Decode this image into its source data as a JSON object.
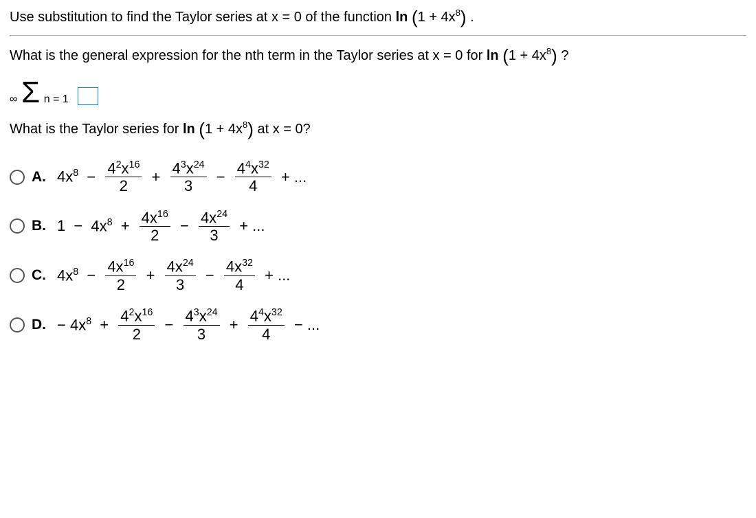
{
  "instruction_prefix": "Use substitution to find the Taylor series at x = 0 of the function ",
  "ln": "ln",
  "func_inner": "1 + 4x",
  "func_exp": "8",
  "period": ".",
  "question_prefix": "What is the general expression for the nth term in the Taylor series at x = 0 for ",
  "question_suffix": " ?",
  "sum_top": "∞",
  "sum_sigma": "Σ",
  "sum_bottom": "n = 1",
  "sub_question_prefix": "What is the Taylor series for ",
  "sub_question_suffix": " at x = 0?",
  "options": {
    "A": {
      "label": "A.",
      "first_coef": "4x",
      "first_exp": "8",
      "t2_num_a": "4",
      "t2_num_aexp": "2",
      "t2_num_b": "x",
      "t2_num_bexp": "16",
      "t2_den": "2",
      "t3_num_a": "4",
      "t3_num_aexp": "3",
      "t3_num_b": "x",
      "t3_num_bexp": "24",
      "t3_den": "3",
      "t4_num_a": "4",
      "t4_num_aexp": "4",
      "t4_num_b": "x",
      "t4_num_bexp": "32",
      "t4_den": "4",
      "ops": [
        "−",
        "+",
        "−",
        "+ ..."
      ]
    },
    "B": {
      "label": "B.",
      "lead": "1",
      "first_coef": "4x",
      "first_exp": "8",
      "t2_num": "4x",
      "t2_num_exp": "16",
      "t2_den": "2",
      "t3_num": "4x",
      "t3_num_exp": "24",
      "t3_den": "3",
      "ops": [
        "−",
        "+",
        "−",
        "+ ..."
      ]
    },
    "C": {
      "label": "C.",
      "first_coef": "4x",
      "first_exp": "8",
      "t2_num": "4x",
      "t2_num_exp": "16",
      "t2_den": "2",
      "t3_num": "4x",
      "t3_num_exp": "24",
      "t3_den": "3",
      "t4_num": "4x",
      "t4_num_exp": "32",
      "t4_den": "4",
      "ops": [
        "−",
        "+",
        "−",
        "+ ..."
      ]
    },
    "D": {
      "label": "D.",
      "first_sign": "− ",
      "first_coef": "4x",
      "first_exp": "8",
      "t2_num_a": "4",
      "t2_num_aexp": "2",
      "t2_num_b": "x",
      "t2_num_bexp": "16",
      "t2_den": "2",
      "t3_num_a": "4",
      "t3_num_aexp": "3",
      "t3_num_b": "x",
      "t3_num_bexp": "24",
      "t3_den": "3",
      "t4_num_a": "4",
      "t4_num_aexp": "4",
      "t4_num_b": "x",
      "t4_num_bexp": "32",
      "t4_den": "4",
      "ops": [
        "+",
        "−",
        "+",
        "− ..."
      ]
    }
  }
}
